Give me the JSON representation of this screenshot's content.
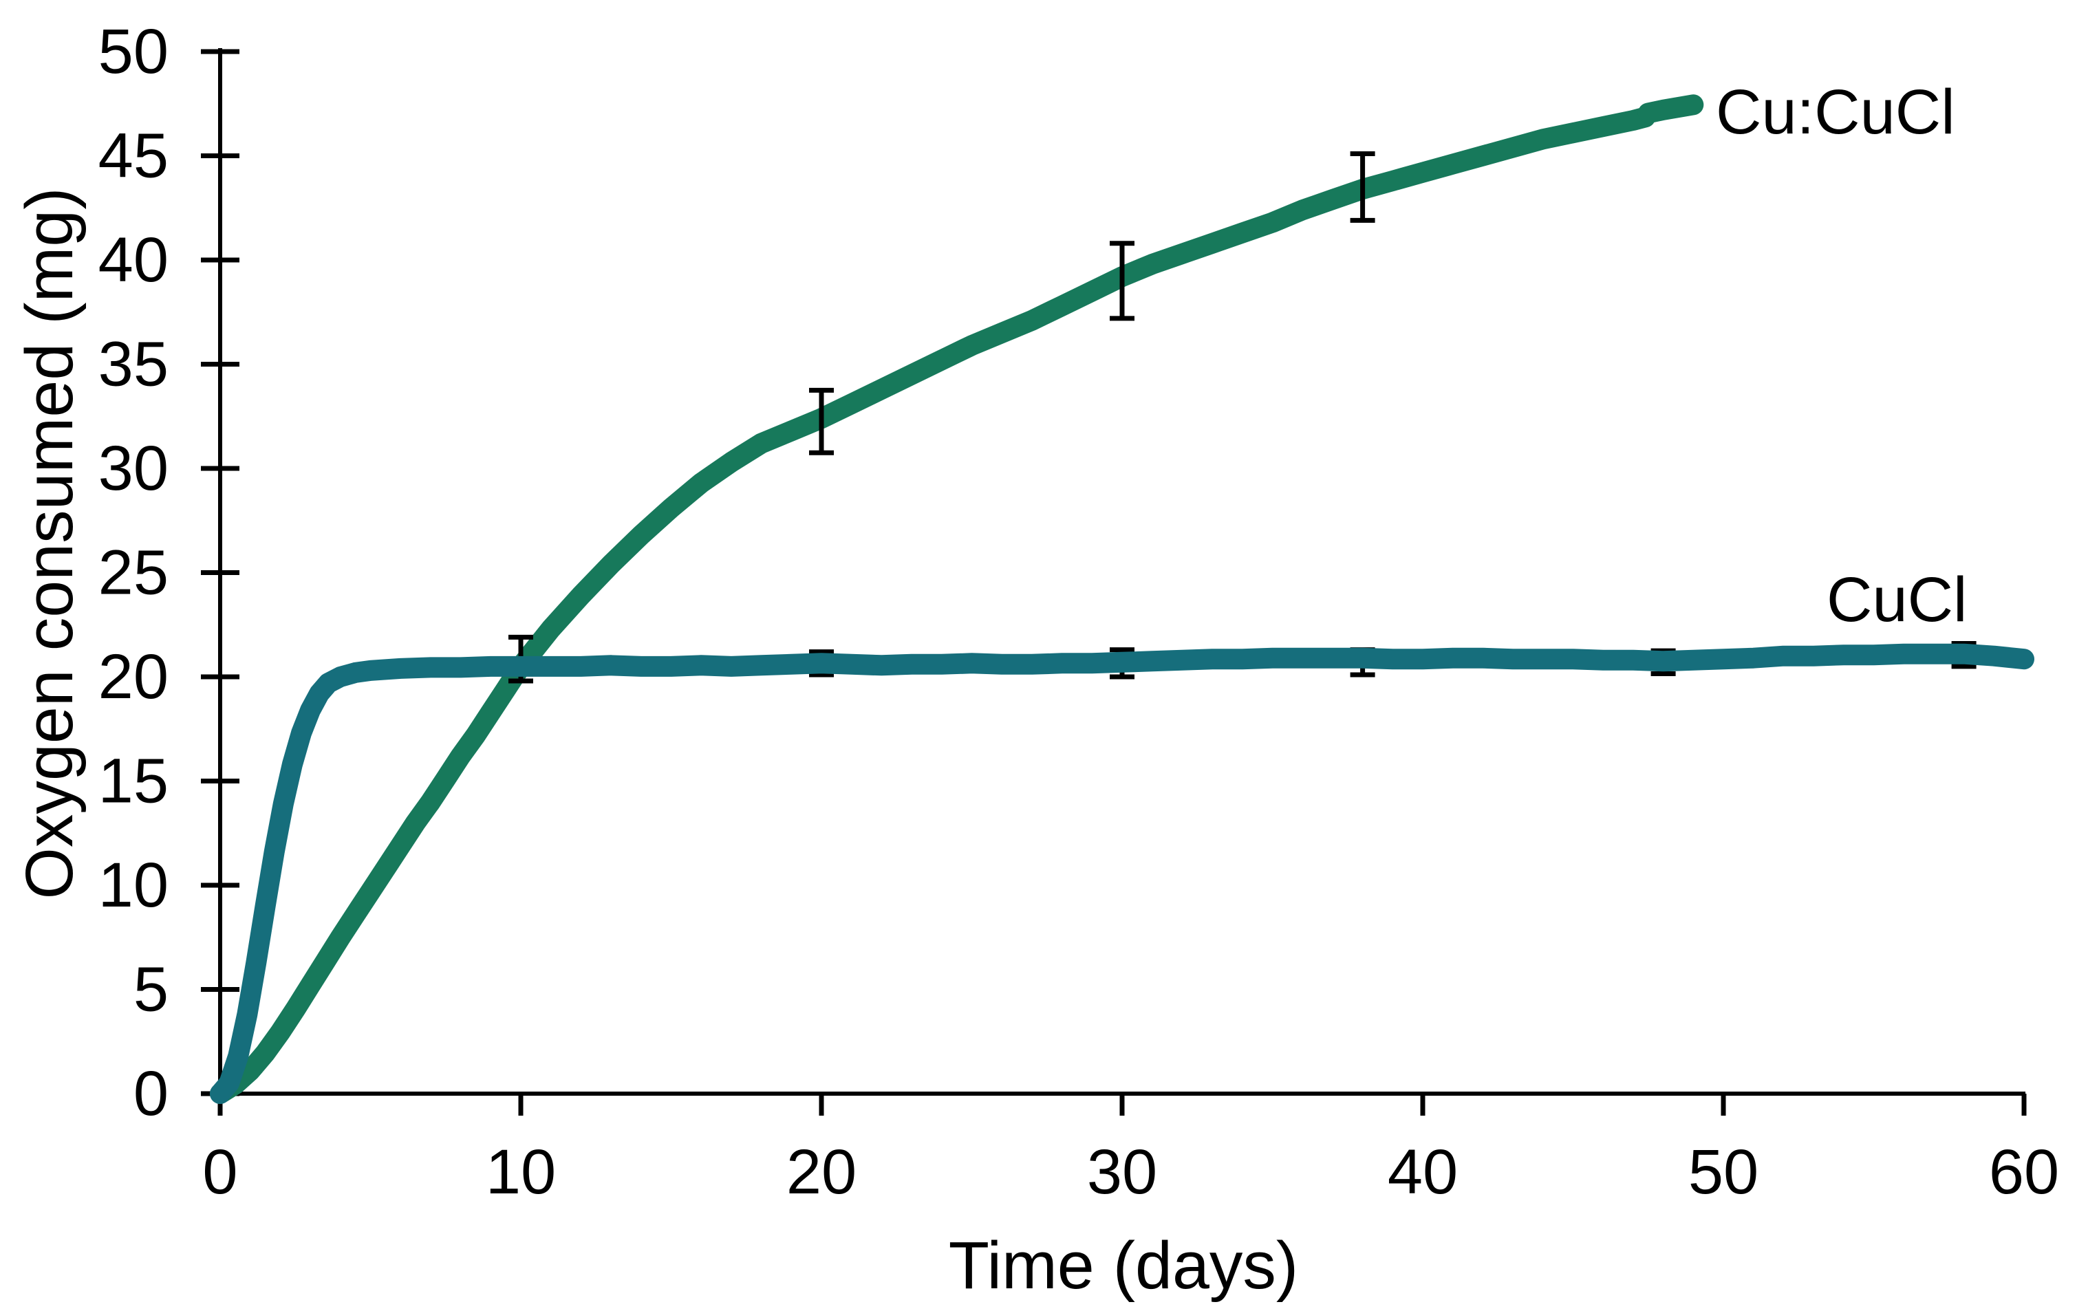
{
  "chart_data": {
    "type": "line",
    "title": "",
    "xlabel": "Time (days)",
    "ylabel": "Oxygen consumed (mg)",
    "xlim": [
      0,
      60
    ],
    "ylim": [
      0,
      50
    ],
    "x_ticks": [
      0,
      10,
      20,
      30,
      40,
      50,
      60
    ],
    "y_ticks": [
      0,
      5,
      10,
      15,
      20,
      25,
      30,
      35,
      40,
      45,
      50
    ],
    "grid": false,
    "legend_position": "labels-at-line-ends",
    "axis_color": "#000000",
    "error_bar_color": "#000000",
    "series": [
      {
        "name": "Cu:CuCl",
        "color": "#17795B",
        "line_width": 30,
        "points": [
          [
            0,
            0
          ],
          [
            0.5,
            0.45
          ],
          [
            1,
            1.1
          ],
          [
            1.5,
            1.95
          ],
          [
            2,
            2.95
          ],
          [
            2.5,
            4.05
          ],
          [
            3,
            5.2
          ],
          [
            3.5,
            6.35
          ],
          [
            4,
            7.5
          ],
          [
            4.5,
            8.6
          ],
          [
            5,
            9.7
          ],
          [
            5.5,
            10.8
          ],
          [
            6,
            11.9
          ],
          [
            6.5,
            13.0
          ],
          [
            7,
            14.0
          ],
          [
            7.5,
            15.1
          ],
          [
            8,
            16.2
          ],
          [
            8.5,
            17.2
          ],
          [
            9,
            18.3
          ],
          [
            9.5,
            19.4
          ],
          [
            10,
            20.5
          ],
          [
            10.5,
            21.4
          ],
          [
            11,
            22.3
          ],
          [
            12,
            23.9
          ],
          [
            13,
            25.4
          ],
          [
            14,
            26.8
          ],
          [
            15,
            28.1
          ],
          [
            16,
            29.3
          ],
          [
            17,
            30.3
          ],
          [
            18,
            31.2
          ],
          [
            19,
            31.8
          ],
          [
            20,
            32.4
          ],
          [
            21,
            33.1
          ],
          [
            22,
            33.8
          ],
          [
            23,
            34.5
          ],
          [
            24,
            35.2
          ],
          [
            25,
            35.9
          ],
          [
            26,
            36.5
          ],
          [
            27,
            37.1
          ],
          [
            28,
            37.8
          ],
          [
            29,
            38.5
          ],
          [
            30,
            39.2
          ],
          [
            31,
            39.8
          ],
          [
            32,
            40.3
          ],
          [
            33,
            40.8
          ],
          [
            34,
            41.3
          ],
          [
            35,
            41.8
          ],
          [
            36,
            42.4
          ],
          [
            37,
            42.9
          ],
          [
            38,
            43.4
          ],
          [
            39,
            43.8
          ],
          [
            40,
            44.2
          ],
          [
            41,
            44.6
          ],
          [
            42,
            45.0
          ],
          [
            43,
            45.4
          ],
          [
            44,
            45.8
          ],
          [
            45,
            46.1
          ],
          [
            46,
            46.4
          ],
          [
            47,
            46.7
          ],
          [
            47.4,
            46.85
          ]
        ],
        "extra_segment": [
          [
            47.5,
            47.05
          ],
          [
            48,
            47.2
          ],
          [
            49,
            47.45
          ]
        ],
        "error_bars": [
          {
            "x": 10,
            "y": 20.85,
            "err": 1.05
          },
          {
            "x": 20,
            "y": 32.25,
            "err": 1.5
          },
          {
            "x": 30,
            "y": 39.0,
            "err": 1.8
          },
          {
            "x": 38,
            "y": 43.5,
            "err": 1.6
          }
        ]
      },
      {
        "name": "CuCl",
        "color": "#166E7C",
        "line_width": 30,
        "points": [
          [
            0,
            0
          ],
          [
            0.3,
            0.5
          ],
          [
            0.6,
            1.8
          ],
          [
            0.9,
            3.8
          ],
          [
            1.2,
            6.3
          ],
          [
            1.5,
            9.0
          ],
          [
            1.8,
            11.6
          ],
          [
            2.1,
            13.9
          ],
          [
            2.4,
            15.8
          ],
          [
            2.7,
            17.3
          ],
          [
            3,
            18.4
          ],
          [
            3.3,
            19.2
          ],
          [
            3.6,
            19.7
          ],
          [
            4,
            20.0
          ],
          [
            4.5,
            20.2
          ],
          [
            5,
            20.3
          ],
          [
            6,
            20.4
          ],
          [
            7,
            20.45
          ],
          [
            8,
            20.45
          ],
          [
            9,
            20.5
          ],
          [
            10,
            20.5
          ],
          [
            11,
            20.5
          ],
          [
            12,
            20.5
          ],
          [
            13,
            20.55
          ],
          [
            14,
            20.5
          ],
          [
            15,
            20.5
          ],
          [
            16,
            20.55
          ],
          [
            17,
            20.5
          ],
          [
            18,
            20.55
          ],
          [
            19,
            20.6
          ],
          [
            20,
            20.65
          ],
          [
            21,
            20.6
          ],
          [
            22,
            20.55
          ],
          [
            23,
            20.6
          ],
          [
            24,
            20.6
          ],
          [
            25,
            20.65
          ],
          [
            26,
            20.6
          ],
          [
            27,
            20.6
          ],
          [
            28,
            20.65
          ],
          [
            29,
            20.65
          ],
          [
            30,
            20.7
          ],
          [
            31,
            20.75
          ],
          [
            32,
            20.8
          ],
          [
            33,
            20.85
          ],
          [
            34,
            20.85
          ],
          [
            35,
            20.9
          ],
          [
            36,
            20.9
          ],
          [
            37,
            20.9
          ],
          [
            38,
            20.9
          ],
          [
            39,
            20.85
          ],
          [
            40,
            20.85
          ],
          [
            41,
            20.9
          ],
          [
            42,
            20.9
          ],
          [
            43,
            20.85
          ],
          [
            44,
            20.85
          ],
          [
            45,
            20.85
          ],
          [
            46,
            20.8
          ],
          [
            47,
            20.8
          ],
          [
            48,
            20.75
          ],
          [
            49,
            20.8
          ],
          [
            50,
            20.85
          ],
          [
            51,
            20.9
          ],
          [
            52,
            21.0
          ],
          [
            53,
            21.0
          ],
          [
            54,
            21.05
          ],
          [
            55,
            21.05
          ],
          [
            56,
            21.1
          ],
          [
            57,
            21.1
          ],
          [
            58,
            21.1
          ],
          [
            59,
            21.0
          ],
          [
            60,
            20.85
          ]
        ],
        "extra_segment": [],
        "error_bars": [
          {
            "x": 20,
            "y": 20.65,
            "err": 0.55
          },
          {
            "x": 30,
            "y": 20.65,
            "err": 0.65
          },
          {
            "x": 38,
            "y": 20.7,
            "err": 0.6
          },
          {
            "x": 48,
            "y": 20.7,
            "err": 0.55
          },
          {
            "x": 58,
            "y": 21.05,
            "err": 0.55
          }
        ]
      }
    ]
  }
}
